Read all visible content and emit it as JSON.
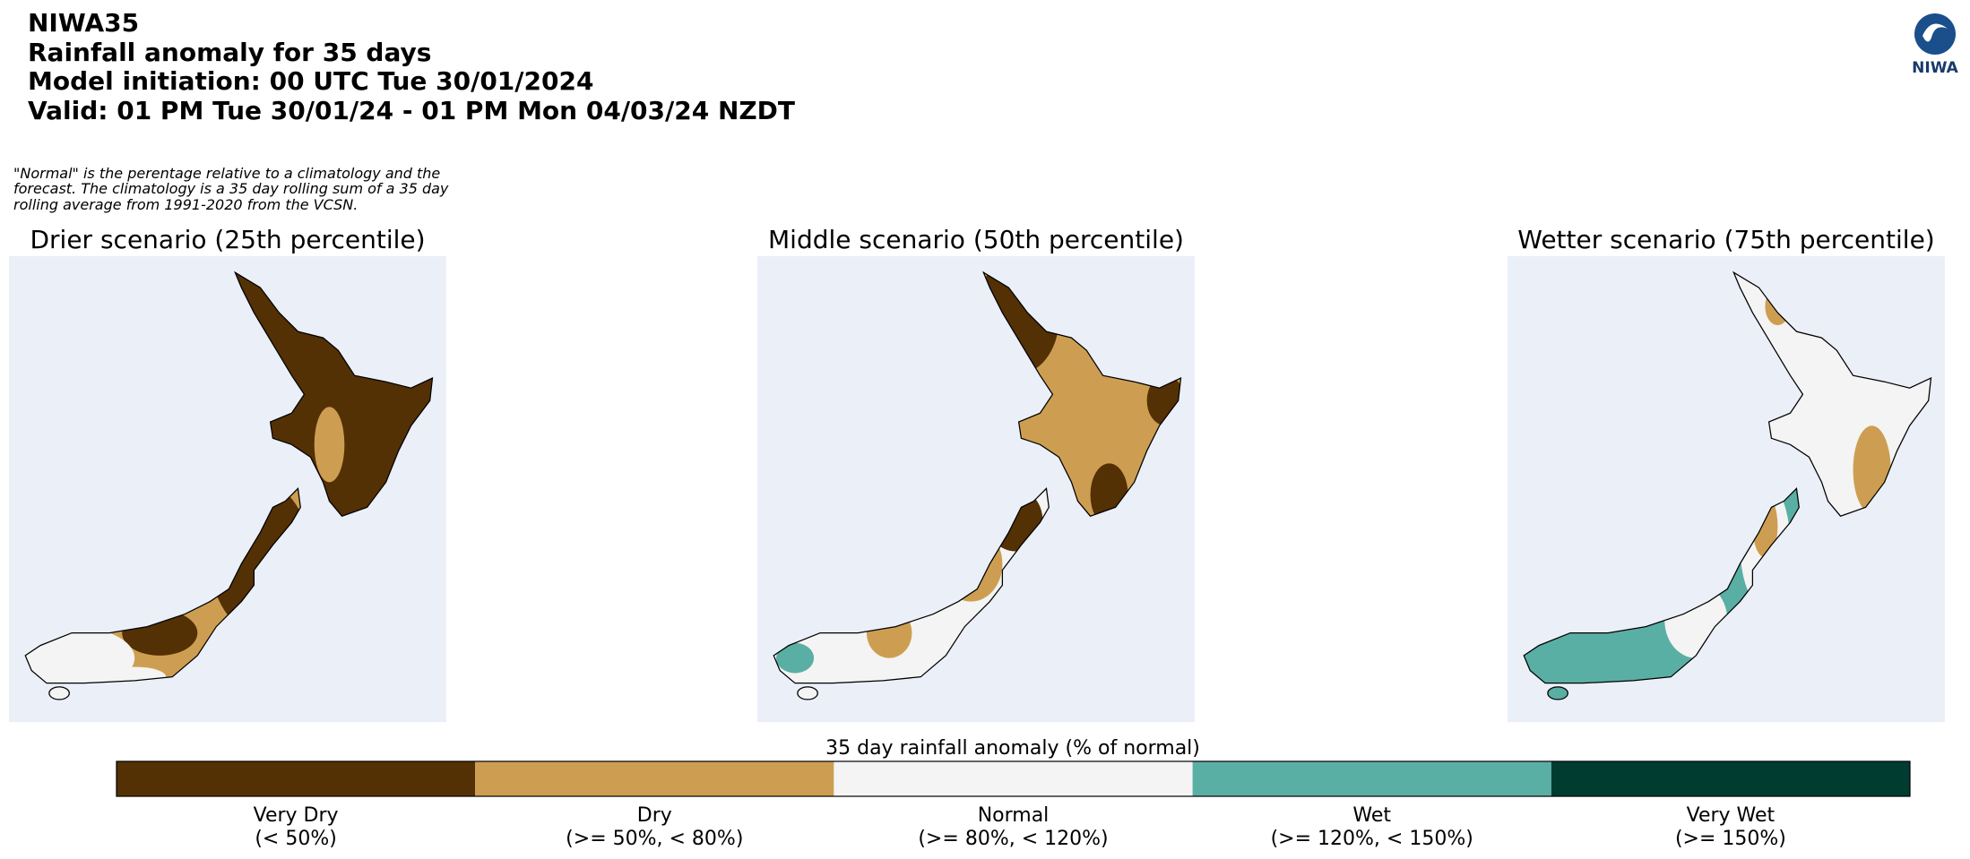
{
  "header": {
    "lines": [
      "NIWA35",
      "Rainfall anomaly for 35 days",
      "Model initiation: 00 UTC Tue 30/01/2024",
      "Valid: 01 PM Tue 30/01/24 - 01 PM Mon 04/03/24 NZDT"
    ]
  },
  "logo": "NIWA",
  "note": [
    "\"Normal\" is the perentage relative to a climatology and the",
    "forecast. The climatology is a 35 day rolling sum of a 35 day",
    "rolling average from 1991-2020 from the VCSN."
  ],
  "panels": [
    {
      "title": "Drier scenario (25th percentile)"
    },
    {
      "title": "Middle scenario (50th percentile)"
    },
    {
      "title": "Wetter scenario (75th percentile)"
    }
  ],
  "colorbar": {
    "label": "35 day rainfall anomaly (% of normal)",
    "items": [
      {
        "name": "Very Dry",
        "range": "(< 50%)",
        "color": "#543005"
      },
      {
        "name": "Dry",
        "range": "(>= 50%, < 80%)",
        "color": "#cd9e52"
      },
      {
        "name": "Normal",
        "range": "(>= 80%, < 120%)",
        "color": "#f3f4f3"
      },
      {
        "name": "Wet",
        "range": "(>= 120%, < 150%)",
        "color": "#5aafa4"
      },
      {
        "name": "Very Wet",
        "range": "(>= 150%)",
        "color": "#003c30"
      }
    ]
  }
}
